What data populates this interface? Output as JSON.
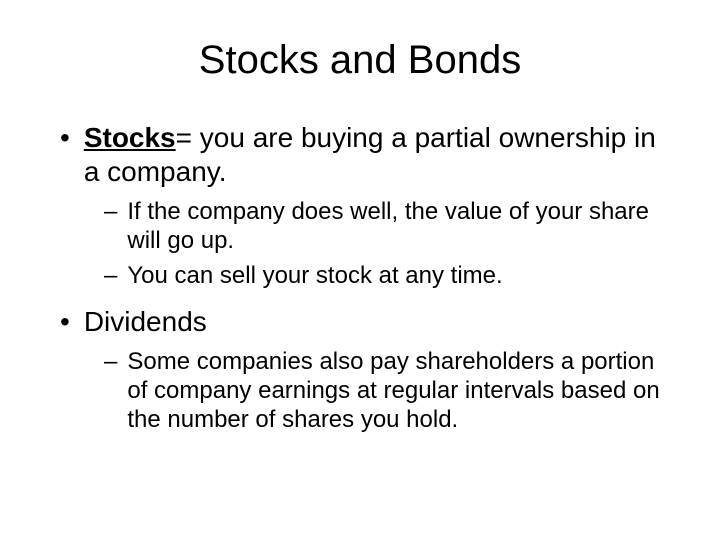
{
  "title": "Stocks and Bonds",
  "bullets": {
    "item1_term": "Stocks",
    "item1_rest": "= you are buying a partial ownership in a company.",
    "item1_sub1": "If the company does well, the value of your share will go up.",
    "item1_sub2": "You can sell your stock at any time.",
    "item2": "Dividends",
    "item2_sub1": "Some companies also pay shareholders a portion of company earnings at regular intervals based on the number of shares you hold."
  },
  "markers": {
    "l1": "•",
    "l2": "–"
  },
  "colors": {
    "background": "#ffffff",
    "text": "#000000"
  },
  "typography": {
    "title_fontsize": 40,
    "l1_fontsize": 28,
    "l2_fontsize": 24,
    "font_family": "Arial"
  }
}
